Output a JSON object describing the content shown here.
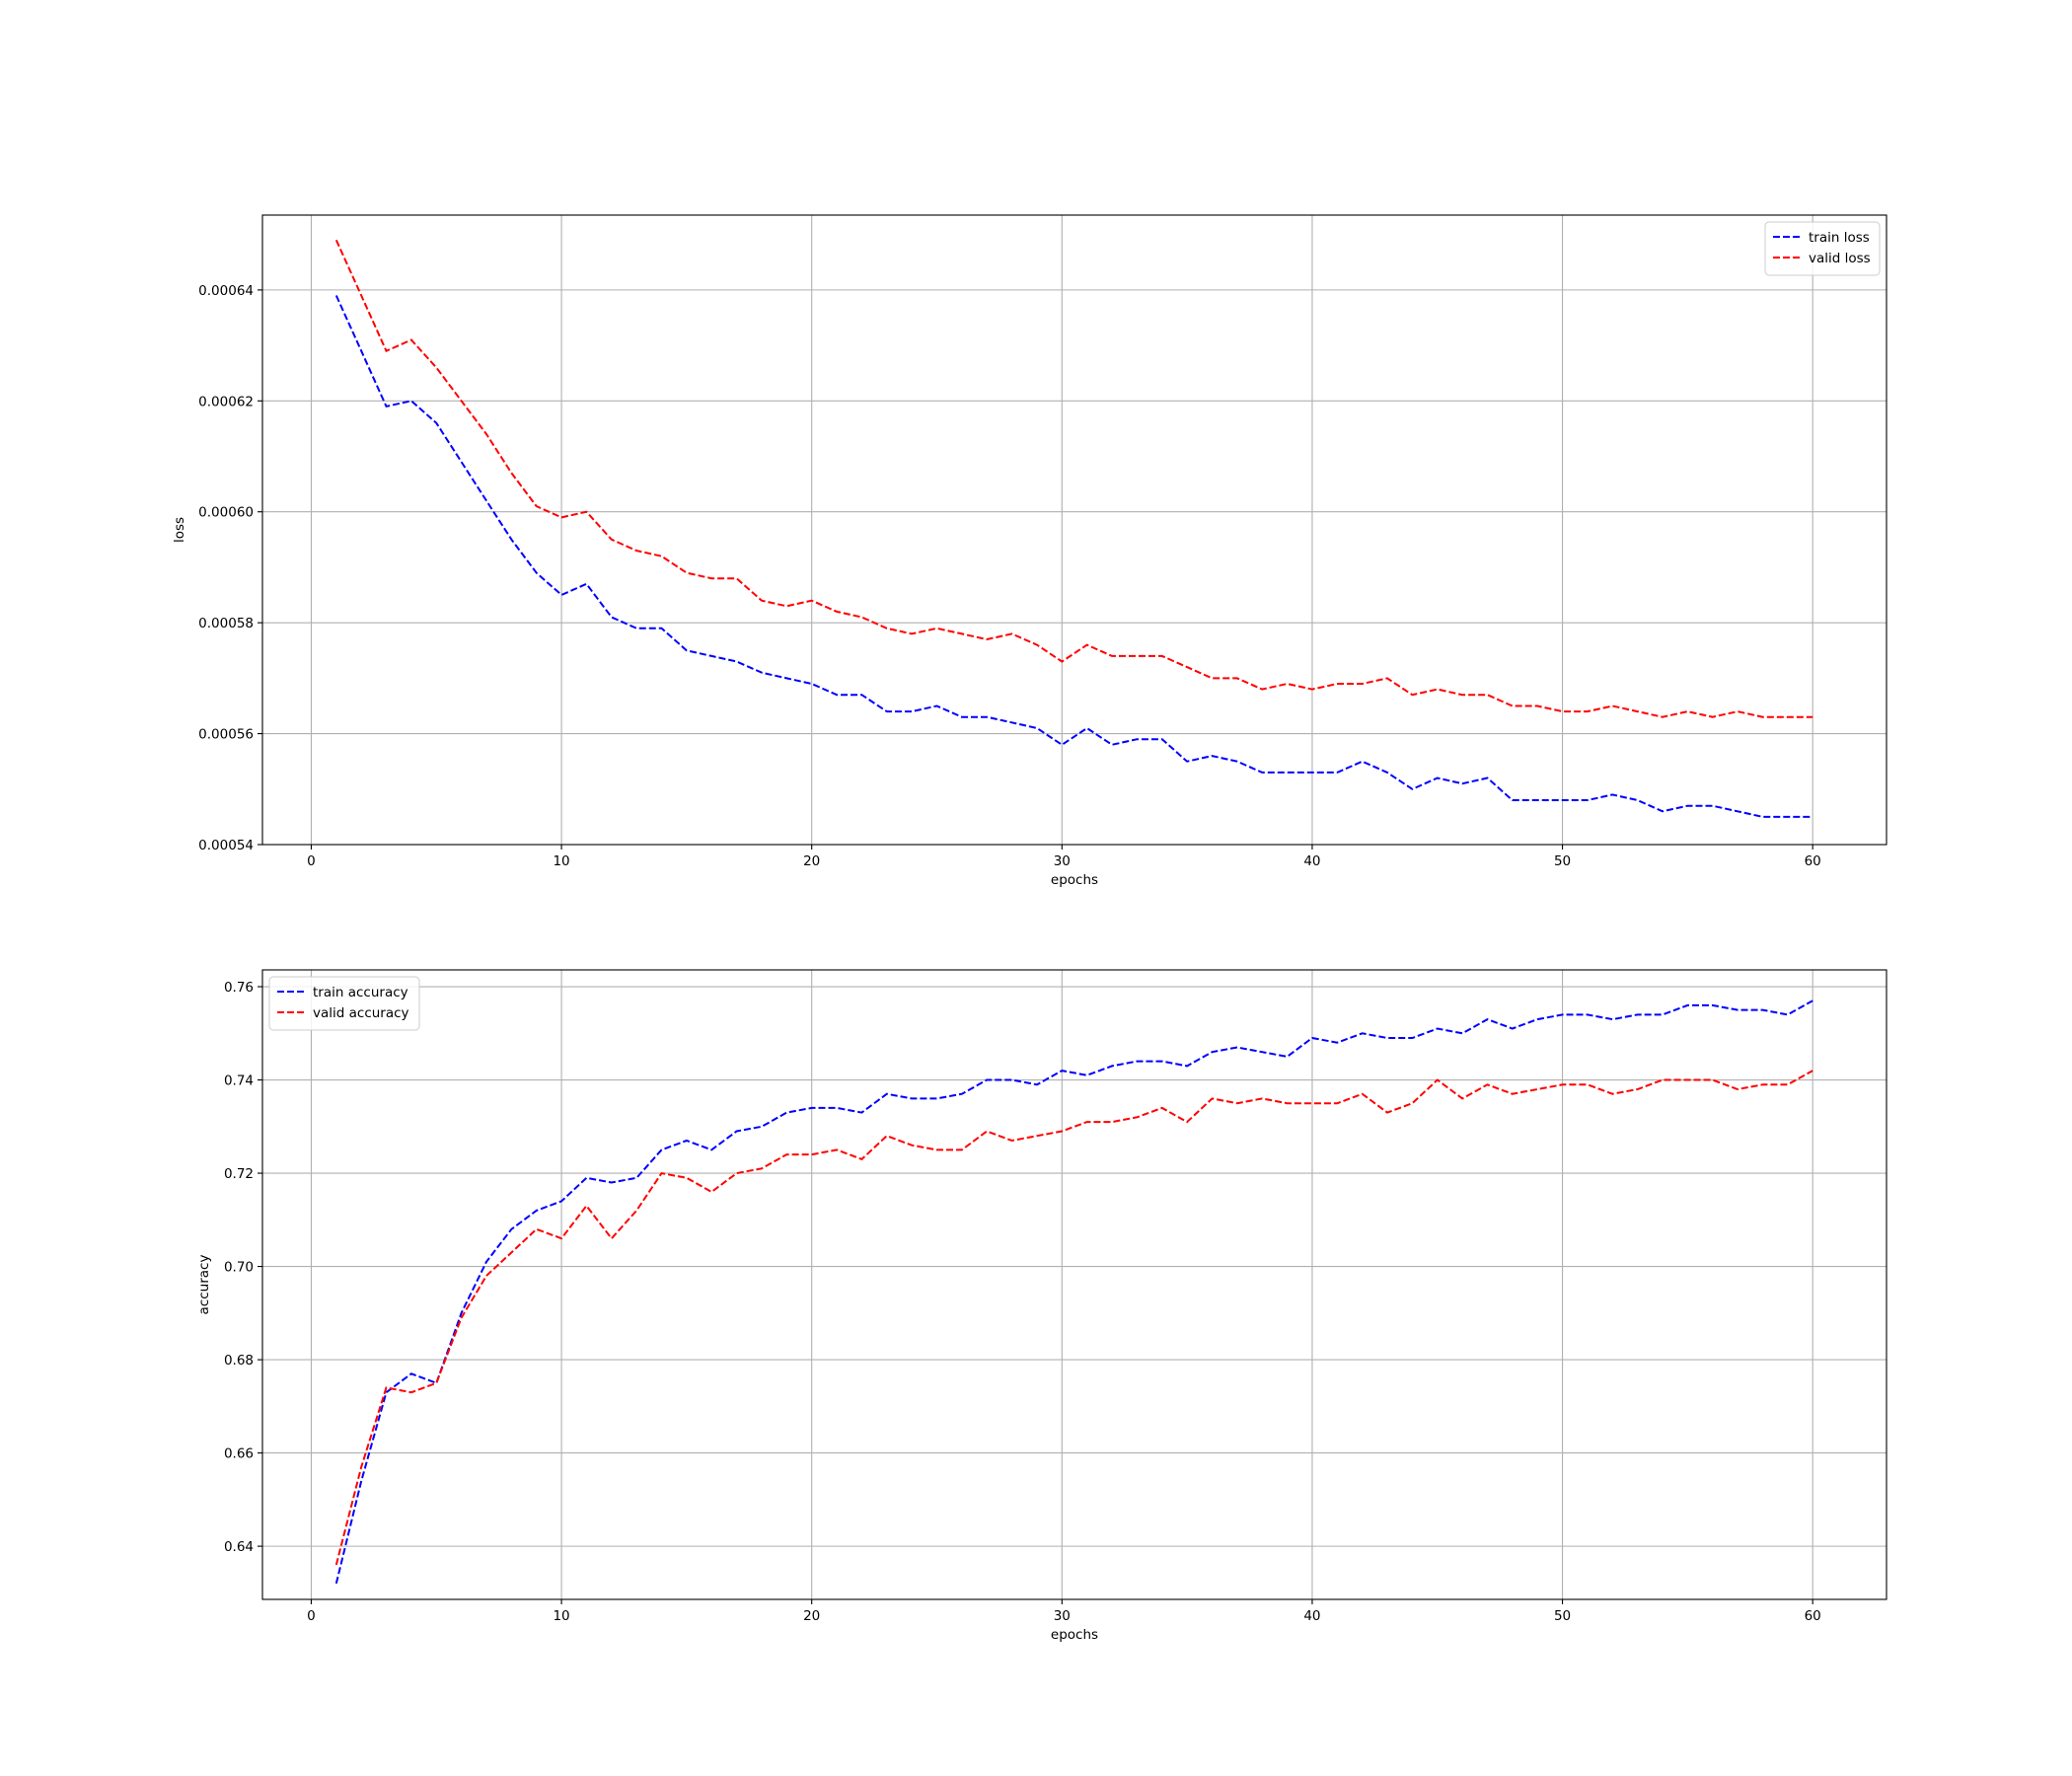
{
  "chart_data": [
    {
      "type": "line",
      "xlabel": "epochs",
      "ylabel": "loss",
      "xlim": [
        -1.95,
        62.95
      ],
      "ylim": [
        0.00054,
        0.0006535
      ],
      "xticks": [
        0,
        10,
        20,
        30,
        40,
        50,
        60
      ],
      "xtick_labels": [
        "0",
        "10",
        "20",
        "30",
        "40",
        "50",
        "60"
      ],
      "yticks": [
        0.00054,
        0.00056,
        0.00058,
        0.0006,
        0.00062,
        0.00064
      ],
      "ytick_labels": [
        "0.00054",
        "0.00056",
        "0.00058",
        "0.00060",
        "0.00062",
        "0.00064"
      ],
      "grid": true,
      "legend_position": "top-right",
      "x": [
        1,
        2,
        3,
        4,
        5,
        6,
        7,
        8,
        9,
        10,
        11,
        12,
        13,
        14,
        15,
        16,
        17,
        18,
        19,
        20,
        21,
        22,
        23,
        24,
        25,
        26,
        27,
        28,
        29,
        30,
        31,
        32,
        33,
        34,
        35,
        36,
        37,
        38,
        39,
        40,
        41,
        42,
        43,
        44,
        45,
        46,
        47,
        48,
        49,
        50,
        51,
        52,
        53,
        54,
        55,
        56,
        57,
        58,
        59,
        60
      ],
      "series": [
        {
          "name": "train loss",
          "color": "#0000ff",
          "style": "dashed",
          "values": [
            0.000639,
            0.000629,
            0.000619,
            0.00062,
            0.000616,
            0.000609,
            0.000602,
            0.000595,
            0.000589,
            0.000585,
            0.000587,
            0.000581,
            0.000579,
            0.000579,
            0.000575,
            0.000574,
            0.000573,
            0.000571,
            0.00057,
            0.000569,
            0.000567,
            0.000567,
            0.000564,
            0.000564,
            0.000565,
            0.000563,
            0.000563,
            0.000562,
            0.000561,
            0.000558,
            0.000561,
            0.000558,
            0.000559,
            0.000559,
            0.000555,
            0.000556,
            0.000555,
            0.000553,
            0.000553,
            0.000553,
            0.000553,
            0.000555,
            0.000553,
            0.00055,
            0.000552,
            0.000551,
            0.000552,
            0.000548,
            0.000548,
            0.000548,
            0.000548,
            0.000549,
            0.000548,
            0.000546,
            0.000547,
            0.000547,
            0.000546,
            0.000545,
            0.000545,
            0.000545
          ]
        },
        {
          "name": "valid loss",
          "color": "#ff0000",
          "style": "dashed",
          "values": [
            0.000649,
            0.000639,
            0.000629,
            0.000631,
            0.000626,
            0.00062,
            0.000614,
            0.000607,
            0.000601,
            0.000599,
            0.0006,
            0.000595,
            0.000593,
            0.000592,
            0.000589,
            0.000588,
            0.000588,
            0.000584,
            0.000583,
            0.000584,
            0.000582,
            0.000581,
            0.000579,
            0.000578,
            0.000579,
            0.000578,
            0.000577,
            0.000578,
            0.000576,
            0.000573,
            0.000576,
            0.000574,
            0.000574,
            0.000574,
            0.000572,
            0.00057,
            0.00057,
            0.000568,
            0.000569,
            0.000568,
            0.000569,
            0.000569,
            0.00057,
            0.000567,
            0.000568,
            0.000567,
            0.000567,
            0.000565,
            0.000565,
            0.000564,
            0.000564,
            0.000565,
            0.000564,
            0.000563,
            0.000564,
            0.000563,
            0.000564,
            0.000563,
            0.000563,
            0.000563
          ]
        }
      ]
    },
    {
      "type": "line",
      "xlabel": "epochs",
      "ylabel": "accuracy",
      "xlim": [
        -1.95,
        62.95
      ],
      "ylim": [
        0.6286,
        0.7636
      ],
      "xticks": [
        0,
        10,
        20,
        30,
        40,
        50,
        60
      ],
      "xtick_labels": [
        "0",
        "10",
        "20",
        "30",
        "40",
        "50",
        "60"
      ],
      "yticks": [
        0.64,
        0.66,
        0.68,
        0.7,
        0.72,
        0.74,
        0.76
      ],
      "ytick_labels": [
        "0.64",
        "0.66",
        "0.68",
        "0.70",
        "0.72",
        "0.74",
        "0.76"
      ],
      "grid": true,
      "legend_position": "top-left",
      "x": [
        1,
        2,
        3,
        4,
        5,
        6,
        7,
        8,
        9,
        10,
        11,
        12,
        13,
        14,
        15,
        16,
        17,
        18,
        19,
        20,
        21,
        22,
        23,
        24,
        25,
        26,
        27,
        28,
        29,
        30,
        31,
        32,
        33,
        34,
        35,
        36,
        37,
        38,
        39,
        40,
        41,
        42,
        43,
        44,
        45,
        46,
        47,
        48,
        49,
        50,
        51,
        52,
        53,
        54,
        55,
        56,
        57,
        58,
        59,
        60
      ],
      "series": [
        {
          "name": "train accuracy",
          "color": "#0000ff",
          "style": "dashed",
          "values": [
            0.632,
            0.654,
            0.673,
            0.677,
            0.675,
            0.69,
            0.701,
            0.708,
            0.712,
            0.714,
            0.719,
            0.718,
            0.719,
            0.725,
            0.727,
            0.725,
            0.729,
            0.73,
            0.733,
            0.734,
            0.734,
            0.733,
            0.737,
            0.736,
            0.736,
            0.737,
            0.74,
            0.74,
            0.739,
            0.742,
            0.741,
            0.743,
            0.744,
            0.744,
            0.743,
            0.746,
            0.747,
            0.746,
            0.745,
            0.749,
            0.748,
            0.75,
            0.749,
            0.749,
            0.751,
            0.75,
            0.753,
            0.751,
            0.753,
            0.754,
            0.754,
            0.753,
            0.754,
            0.754,
            0.756,
            0.756,
            0.755,
            0.755,
            0.754,
            0.757
          ]
        },
        {
          "name": "valid accuracy",
          "color": "#ff0000",
          "style": "dashed",
          "values": [
            0.636,
            0.657,
            0.674,
            0.673,
            0.675,
            0.689,
            0.698,
            0.703,
            0.708,
            0.706,
            0.713,
            0.706,
            0.712,
            0.72,
            0.719,
            0.716,
            0.72,
            0.721,
            0.724,
            0.724,
            0.725,
            0.723,
            0.728,
            0.726,
            0.725,
            0.725,
            0.729,
            0.727,
            0.728,
            0.729,
            0.731,
            0.731,
            0.732,
            0.734,
            0.731,
            0.736,
            0.735,
            0.736,
            0.735,
            0.735,
            0.735,
            0.737,
            0.733,
            0.735,
            0.74,
            0.736,
            0.739,
            0.737,
            0.738,
            0.739,
            0.739,
            0.737,
            0.738,
            0.74,
            0.74,
            0.74,
            0.738,
            0.739,
            0.739,
            0.742
          ]
        }
      ]
    }
  ]
}
